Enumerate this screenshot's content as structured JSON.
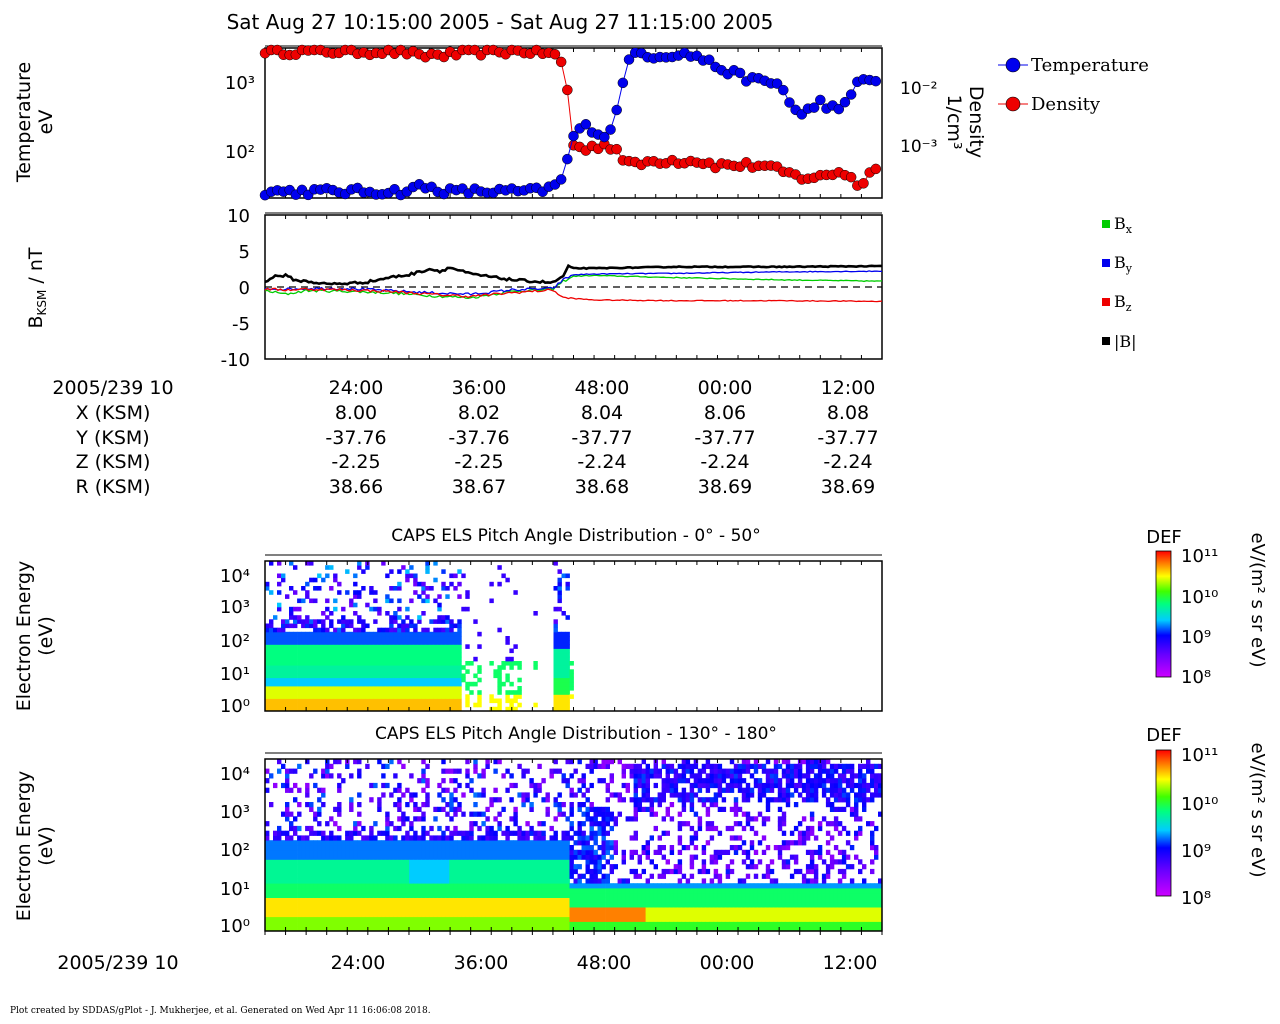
{
  "title": "Sat Aug 27 10:15:00 2005 - Sat Aug 27 11:15:00 2005",
  "footer": "Plot created by SDDAS/gPlot - J. Mukherjee, et al.  Generated on Wed Apr 11 16:06:08 2018.",
  "colors": {
    "temperature": "#0000ee",
    "density": "#ee0000",
    "bx": "#00cc00",
    "by": "#0000ee",
    "bz": "#ee0000",
    "bmag": "#000000"
  },
  "panel1": {
    "ylabel_line1": "Temperature",
    "ylabel_line2": "eV",
    "y2label_line1": "Density",
    "y2label_line2": "1/cm³",
    "left_ticks": [
      "10³",
      "10²"
    ],
    "right_ticks": [
      "10⁻²",
      "10⁻³"
    ],
    "legend": [
      "Temperature",
      "Density"
    ]
  },
  "panel2": {
    "ylabel": "B",
    "ylabel_sub": "KSM",
    "ylabel_tail": " / nT",
    "ticks": [
      "10",
      "5",
      "0",
      "-5",
      "-10"
    ],
    "legend": [
      {
        "label": "B",
        "sub": "x"
      },
      {
        "label": "B",
        "sub": "y"
      },
      {
        "label": "B",
        "sub": "z"
      },
      {
        "label": "|B|",
        "sub": ""
      }
    ]
  },
  "ephemeris": {
    "header": "2005/239 10",
    "times": [
      "24:00",
      "36:00",
      "48:00",
      "00:00",
      "12:00"
    ],
    "rows": [
      {
        "label": "X (KSM)",
        "values": [
          "8.00",
          "8.02",
          "8.04",
          "8.06",
          "8.08"
        ]
      },
      {
        "label": "Y (KSM)",
        "values": [
          "-37.76",
          "-37.76",
          "-37.77",
          "-37.77",
          "-37.77"
        ]
      },
      {
        "label": "Z (KSM)",
        "values": [
          "-2.25",
          "-2.25",
          "-2.24",
          "-2.24",
          "-2.24"
        ]
      },
      {
        "label": "R (KSM)",
        "values": [
          "38.66",
          "38.67",
          "38.68",
          "38.69",
          "38.69"
        ]
      }
    ]
  },
  "spectro1": {
    "title": "CAPS ELS Pitch Angle Distribution - 0° - 50°",
    "ylabel_line1": "Electron Energy",
    "ylabel_line2": "(eV)",
    "ticks": [
      "10⁴",
      "10³",
      "10²",
      "10¹",
      "10⁰"
    ],
    "cbar_title": "DEF",
    "cbar_ticks": [
      "10¹¹",
      "10¹⁰",
      "10⁹",
      "10⁸"
    ],
    "cbar_unit": "eV/(m² s sr eV)"
  },
  "spectro2": {
    "title": "CAPS ELS Pitch Angle Distribution - 130° - 180°",
    "ylabel_line1": "Electron Energy",
    "ylabel_line2": "(eV)",
    "ticks": [
      "10⁴",
      "10³",
      "10²",
      "10¹",
      "10⁰"
    ],
    "cbar_title": "DEF",
    "cbar_ticks": [
      "10¹¹",
      "10¹⁰",
      "10⁹",
      "10⁸"
    ],
    "cbar_unit": "eV/(m² s sr eV)"
  },
  "bottom_axis": {
    "header": "2005/239 10",
    "times": [
      "24:00",
      "36:00",
      "48:00",
      "00:00",
      "12:00"
    ]
  },
  "chart_data": [
    {
      "type": "scatter",
      "x_unit": "minutes after 10:15",
      "xlim": [
        0,
        60
      ],
      "ylim": [
        20,
        3000
      ],
      "yscale": "log",
      "y2lim": [
        0.0002,
        0.03
      ],
      "y2scale": "log",
      "series": [
        {
          "name": "Temperature",
          "axis": "left",
          "x": [
            0,
            2,
            4,
            6,
            8,
            10,
            12,
            14,
            15,
            16,
            18,
            20,
            22,
            24,
            26,
            28,
            29,
            29.5,
            30,
            31,
            32,
            33,
            34,
            35,
            36,
            37,
            38
          ],
          "y": [
            25,
            25,
            25,
            25,
            25,
            25,
            25,
            25,
            30,
            28,
            25,
            25,
            25,
            25,
            25,
            28,
            40,
            80,
            160,
            220,
            200,
            160,
            250,
            1500,
            2500,
            2500,
            2300
          ]
        },
        {
          "name": "Density",
          "axis": "right",
          "x": [
            0,
            2,
            4,
            6,
            8,
            10,
            12,
            14,
            15,
            16,
            18,
            20,
            22,
            24,
            26,
            28,
            29,
            29.5,
            30,
            31,
            32,
            33,
            34,
            35,
            36,
            37,
            38
          ],
          "y": [
            0.028,
            0.027,
            0.027,
            0.027,
            0.027,
            0.027,
            0.027,
            0.026,
            0.022,
            0.024,
            0.024,
            0.026,
            0.027,
            0.027,
            0.027,
            0.025,
            0.017,
            0.006,
            0.0012,
            0.001,
            0.0011,
            0.0012,
            0.0011,
            0.0007,
            0.0006,
            0.00065,
            0.0007
          ]
        }
      ]
    },
    {
      "type": "line",
      "x_unit": "minutes after 10:15",
      "xlim": [
        0,
        60
      ],
      "ylim": [
        -10,
        10
      ],
      "series": [
        {
          "name": "Bx",
          "x": [
            0,
            2,
            4,
            8,
            12,
            16,
            20,
            24,
            28,
            29,
            30,
            32,
            40,
            50,
            60
          ],
          "y": [
            -0.5,
            -1,
            -0.5,
            -0.6,
            -0.8,
            -1.2,
            -1.5,
            -0.6,
            -0.3,
            0.8,
            1.5,
            1.6,
            1.3,
            1,
            0.8
          ]
        },
        {
          "name": "By",
          "x": [
            0,
            2,
            4,
            8,
            12,
            16,
            20,
            24,
            28,
            29,
            30,
            32,
            40,
            50,
            60
          ],
          "y": [
            -0.2,
            -0.3,
            -0.2,
            -0.2,
            -0.5,
            -0.8,
            -1,
            -0.4,
            -0.2,
            1,
            1.7,
            1.8,
            1.9,
            2.1,
            2.2
          ]
        },
        {
          "name": "Bz",
          "x": [
            0,
            2,
            4,
            8,
            12,
            16,
            20,
            24,
            28,
            29,
            30,
            32,
            40,
            50,
            60
          ],
          "y": [
            -0.3,
            -0.4,
            -0.3,
            -0.4,
            -0.6,
            -1,
            -1.3,
            -0.8,
            -0.4,
            -1.5,
            -1.6,
            -1.8,
            -1.9,
            -1.9,
            -2
          ]
        },
        {
          "name": "|B|",
          "x": [
            0,
            1,
            2,
            3,
            4,
            6,
            8,
            10,
            12,
            14,
            16,
            17,
            18,
            20,
            22,
            24,
            26,
            28,
            29,
            29.5,
            30,
            32,
            36,
            40,
            50,
            60
          ],
          "y": [
            0.8,
            1.5,
            1.6,
            0.9,
            0.8,
            0.4,
            0.5,
            0.7,
            1.3,
            1.7,
            2.5,
            2.2,
            2.7,
            1.8,
            1.4,
            1.0,
            0.8,
            0.6,
            1.5,
            2.8,
            2.6,
            2.6,
            2.7,
            2.8,
            2.8,
            2.9
          ]
        }
      ]
    },
    {
      "type": "heatmap",
      "title": "CAPS ELS Pitch Angle Distribution - 0° - 50°",
      "x_unit": "minutes after 10:15",
      "y_unit": "eV (log)",
      "note": "dense low-energy fluxes until ~30 min, then no data"
    },
    {
      "type": "heatmap",
      "title": "CAPS ELS Pitch Angle Distribution - 130° - 180°",
      "x_unit": "minutes after 10:15",
      "y_unit": "eV (log)",
      "note": "magnetosheath-like fluxes below 10^2 eV until ~29 min, then hot plasma up to 10^4 eV"
    }
  ]
}
